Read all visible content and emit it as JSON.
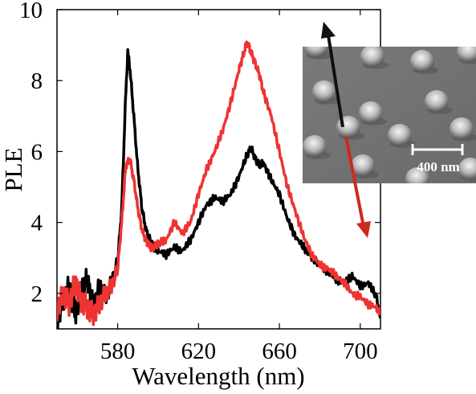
{
  "chart_data": {
    "type": "line",
    "xlabel": "Wavelength (nm)",
    "ylabel": "PLE",
    "xlim": [
      550,
      710
    ],
    "ylim": [
      1,
      10
    ],
    "xticks": [
      580,
      620,
      660,
      700
    ],
    "yticks": [
      2,
      4,
      6,
      8,
      10
    ],
    "grid": false,
    "series": [
      {
        "color": "#000000",
        "x": [
          550,
          553,
          556,
          559,
          562,
          565,
          568,
          571,
          574,
          577,
          580,
          582,
          584,
          585,
          586,
          588,
          590,
          592,
          594,
          596,
          598,
          600,
          604,
          608,
          612,
          616,
          620,
          624,
          628,
          632,
          636,
          640,
          644,
          646,
          648,
          650,
          652,
          656,
          660,
          664,
          668,
          672,
          676,
          680,
          684,
          688,
          692,
          696,
          700,
          704,
          708,
          710
        ],
        "y": [
          1.2,
          1.8,
          2.2,
          1.4,
          2.1,
          2.4,
          1.6,
          2.2,
          1.9,
          2.3,
          2.9,
          4.4,
          7.6,
          8.8,
          8.4,
          7.0,
          5.5,
          4.4,
          3.8,
          3.5,
          3.3,
          3.2,
          3.1,
          3.3,
          3.2,
          3.5,
          4.0,
          4.5,
          4.7,
          4.6,
          4.8,
          5.3,
          5.9,
          6.1,
          5.8,
          5.6,
          5.7,
          5.2,
          4.8,
          4.1,
          3.6,
          3.3,
          3.0,
          2.8,
          2.6,
          2.4,
          2.3,
          2.5,
          2.2,
          2.3,
          1.9,
          1.3
        ]
      },
      {
        "color": "#ee3333",
        "x": [
          550,
          553,
          556,
          559,
          562,
          565,
          568,
          571,
          574,
          577,
          580,
          582,
          584,
          586,
          588,
          590,
          592,
          594,
          596,
          598,
          600,
          604,
          608,
          612,
          616,
          620,
          624,
          628,
          632,
          636,
          640,
          642,
          644,
          646,
          648,
          650,
          652,
          656,
          660,
          664,
          668,
          672,
          676,
          680,
          684,
          688,
          692,
          696,
          700,
          704,
          708,
          710
        ],
        "y": [
          1.5,
          2.0,
          1.7,
          2.3,
          1.8,
          1.6,
          1.4,
          1.7,
          2.0,
          2.2,
          2.7,
          4.0,
          5.6,
          5.8,
          5.2,
          4.4,
          3.8,
          3.5,
          3.3,
          3.3,
          3.4,
          3.5,
          4.0,
          3.7,
          4.0,
          4.8,
          5.5,
          6.0,
          6.6,
          7.4,
          8.3,
          8.7,
          9.1,
          8.8,
          8.5,
          8.2,
          7.7,
          7.0,
          6.0,
          5.0,
          4.3,
          3.6,
          3.1,
          2.8,
          2.7,
          2.5,
          2.3,
          2.0,
          1.9,
          1.7,
          1.6,
          1.4
        ]
      }
    ]
  },
  "inset": {
    "scalebar_label": "400 nm",
    "arrow_up_color": "#111111",
    "arrow_down_color": "#cc2a20"
  }
}
